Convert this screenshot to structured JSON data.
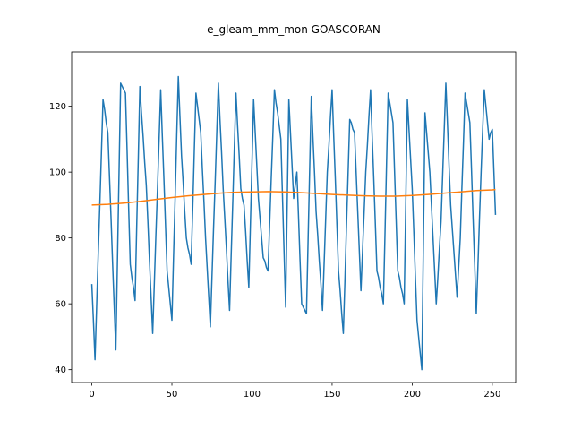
{
  "chart_data": {
    "type": "line",
    "title": "e_gleam_mm_mon GOASCORAN",
    "x": [
      0,
      1,
      2,
      3,
      4,
      5,
      6,
      7,
      8,
      9,
      10,
      11,
      12,
      13,
      14,
      15,
      16,
      17,
      18,
      19,
      20,
      21,
      22,
      23,
      24,
      25,
      26,
      27,
      28,
      29,
      30,
      31,
      32,
      33,
      34,
      35,
      36,
      37,
      38,
      39,
      40,
      41,
      42,
      43,
      44,
      45,
      46,
      47,
      48,
      49,
      50,
      51,
      52,
      53,
      54,
      55,
      56,
      57,
      58,
      59,
      60,
      61,
      62,
      63,
      64,
      65,
      66,
      67,
      68,
      69,
      70,
      71,
      72,
      73,
      74,
      75,
      76,
      77,
      78,
      79,
      80,
      81,
      82,
      83,
      84,
      85,
      86,
      87,
      88,
      89,
      90,
      91,
      92,
      93,
      94,
      95,
      96,
      97,
      98,
      99,
      100,
      101,
      102,
      103,
      104,
      105,
      106,
      107,
      108,
      109,
      110,
      111,
      112,
      113,
      114,
      115,
      116,
      117,
      118,
      119,
      120,
      121,
      122,
      123,
      124,
      125,
      126,
      127,
      128,
      129,
      130,
      131,
      132,
      133,
      134,
      135,
      136,
      137,
      138,
      139,
      140,
      141,
      142,
      143,
      144,
      145,
      146,
      147,
      148,
      149,
      150,
      151,
      152,
      153,
      154,
      155,
      156,
      157,
      158,
      159,
      160,
      161,
      162,
      163,
      164,
      165,
      166,
      167,
      168,
      169,
      170,
      171,
      172,
      173,
      174,
      175,
      176,
      177,
      178,
      179,
      180,
      181,
      182,
      183,
      184,
      185,
      186,
      187,
      188,
      189,
      190,
      191,
      192,
      193,
      194,
      195,
      196,
      197,
      198,
      199,
      200,
      201,
      202,
      203,
      204,
      205,
      206,
      207,
      208,
      209,
      210,
      211,
      212,
      213,
      214,
      215,
      216,
      217,
      218,
      219,
      220,
      221,
      222,
      223,
      224,
      225,
      226,
      227,
      228,
      229,
      230,
      231,
      232,
      233,
      234,
      235,
      236,
      237,
      238,
      239,
      240,
      241,
      242,
      243,
      244,
      245,
      246,
      247,
      248,
      249,
      250,
      251,
      252
    ],
    "series": [
      {
        "color": "#1f77b4",
        "values": [
          66,
          55,
          43,
          59,
          75,
          90,
          106,
          122,
          119,
          115,
          112,
          99,
          86,
          72,
          59,
          46,
          73,
          100,
          127,
          126,
          125,
          124,
          107,
          89,
          72,
          68,
          65,
          61,
          83,
          104,
          126,
          118,
          111,
          103,
          96,
          85,
          73,
          62,
          51,
          66,
          81,
          95,
          110,
          125,
          111,
          98,
          84,
          70,
          65,
          60,
          55,
          74,
          92,
          111,
          129,
          117,
          105,
          97,
          88,
          80,
          77,
          75,
          72,
          89,
          107,
          124,
          120,
          116,
          112,
          101,
          91,
          80,
          71,
          62,
          53,
          68,
          83,
          97,
          112,
          127,
          116,
          106,
          95,
          86,
          77,
          67,
          58,
          75,
          91,
          108,
          124,
          114,
          105,
          95,
          92,
          90,
          82,
          73,
          65,
          84,
          103,
          122,
          112,
          102,
          92,
          86,
          80,
          74,
          73,
          71,
          70,
          84,
          98,
          111,
          125,
          121,
          118,
          114,
          110,
          93,
          76,
          59,
          91,
          122,
          112,
          102,
          92,
          96,
          100,
          87,
          73,
          60,
          59,
          58,
          57,
          79,
          101,
          123,
          111,
          100,
          88,
          81,
          73,
          66,
          58,
          72,
          86,
          100,
          108,
          117,
          125,
          111,
          98,
          84,
          70,
          64,
          57,
          51,
          67,
          84,
          100,
          116,
          115,
          113,
          112,
          100,
          88,
          76,
          64,
          76,
          88,
          100,
          108,
          117,
          125,
          111,
          98,
          84,
          70,
          68,
          65,
          63,
          60,
          81,
          103,
          124,
          121,
          118,
          115,
          100,
          85,
          70,
          68,
          65,
          63,
          60,
          91,
          122,
          113,
          104,
          95,
          82,
          68,
          55,
          50,
          45,
          40,
          79,
          118,
          112,
          106,
          100,
          90,
          80,
          70,
          60,
          68,
          77,
          85,
          99,
          113,
          127,
          115,
          102,
          90,
          83,
          76,
          69,
          62,
          71,
          80,
          95,
          109,
          124,
          121,
          118,
          115,
          101,
          86,
          72,
          57,
          71,
          86,
          100,
          113,
          125,
          120,
          115,
          110,
          112,
          113,
          100,
          87
        ]
      },
      {
        "color": "#ff7f0e",
        "x": [
          0,
          10,
          20,
          30,
          40,
          50,
          60,
          70,
          80,
          90,
          100,
          110,
          120,
          130,
          140,
          150,
          160,
          170,
          180,
          190,
          200,
          210,
          220,
          230,
          240,
          250,
          252
        ],
        "values": [
          90.0,
          90.2,
          90.6,
          91.1,
          91.7,
          92.3,
          92.8,
          93.2,
          93.6,
          93.9,
          94.0,
          94.1,
          94.0,
          93.8,
          93.5,
          93.2,
          93.0,
          92.8,
          92.7,
          92.7,
          92.9,
          93.2,
          93.6,
          94.0,
          94.4,
          94.6,
          94.7
        ]
      }
    ],
    "xlim": [
      -12.6,
      264.6
    ],
    "xticks": [
      0,
      50,
      100,
      150,
      200,
      250
    ],
    "ylim": [
      36.1,
      136.5
    ],
    "yticks": [
      40,
      60,
      80,
      100,
      120
    ]
  }
}
